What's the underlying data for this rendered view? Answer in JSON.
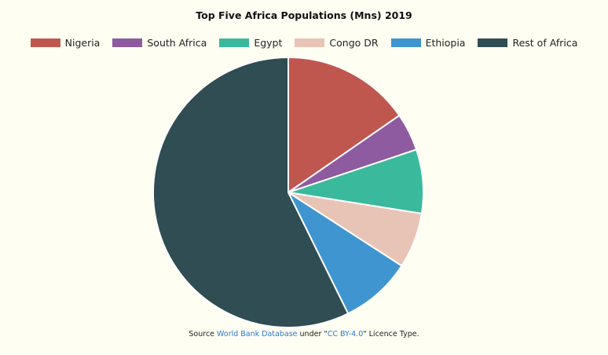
{
  "chart_data": {
    "type": "pie",
    "title": "Top Five Africa Populations (Mns) 2019",
    "categories": [
      "Nigeria",
      "South Africa",
      "Egypt",
      "Congo DR",
      "Ethiopia",
      "Rest of Africa"
    ],
    "values": [
      201,
      59,
      100,
      87,
      112,
      750
    ],
    "colors": [
      "#c0574e",
      "#8e5aa0",
      "#3bb99c",
      "#e8c4b7",
      "#3f95d0",
      "#2f4d52"
    ],
    "legend_position": "top"
  },
  "source": {
    "prefix": "Source ",
    "link1": "World Bank Database",
    "middle": " under \"",
    "link2": "CC BY-4.0",
    "suffix": "\" Licence Type."
  }
}
